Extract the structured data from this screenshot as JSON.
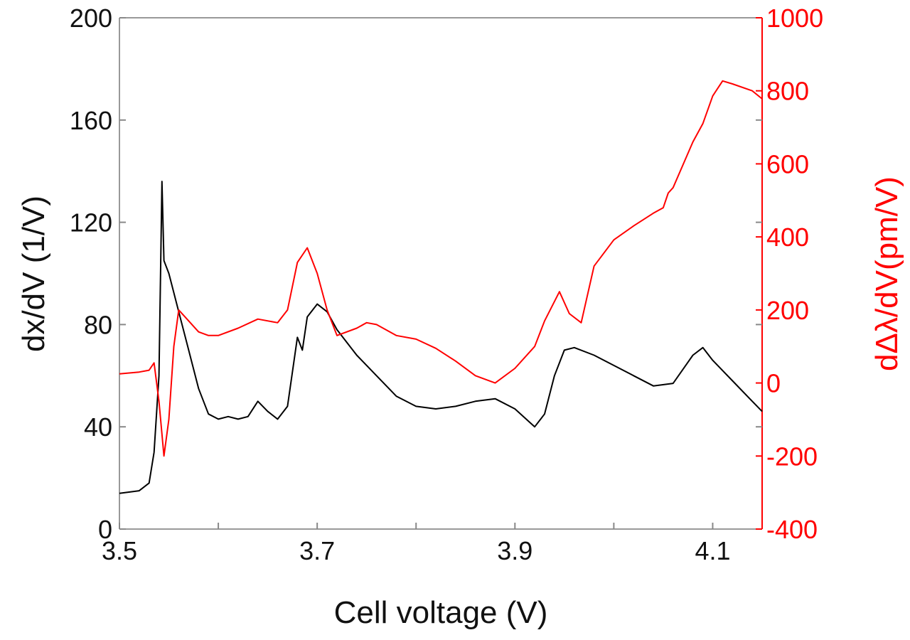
{
  "chart_data": {
    "type": "line",
    "xlabel": "Cell voltage (V)",
    "ylabel": "dx/dV (1/V)",
    "y2label": "dΔλ/dV(pm/V)",
    "xlim": [
      3.5,
      4.15
    ],
    "ylim": [
      0,
      200
    ],
    "y2lim": [
      -400,
      1000
    ],
    "xticks": [
      "3.5",
      "3.7",
      "3.9",
      "4.1"
    ],
    "yticks": [
      "0",
      "40",
      "80",
      "120",
      "160",
      "200"
    ],
    "y2ticks": [
      "-400",
      "-200",
      "0",
      "200",
      "400",
      "600",
      "800",
      "1000"
    ],
    "grid": false,
    "colors": {
      "left_series": "#000000",
      "right_series": "#ff0000",
      "left_axis": "#222222",
      "right_axis": "#ff0000"
    },
    "series": [
      {
        "axis": "left",
        "color": "#000000",
        "x": [
          3.5,
          3.52,
          3.53,
          3.535,
          3.54,
          3.542,
          3.543,
          3.545,
          3.55,
          3.56,
          3.57,
          3.58,
          3.59,
          3.6,
          3.61,
          3.62,
          3.63,
          3.64,
          3.65,
          3.66,
          3.67,
          3.68,
          3.685,
          3.69,
          3.7,
          3.71,
          3.72,
          3.74,
          3.76,
          3.78,
          3.8,
          3.82,
          3.84,
          3.86,
          3.88,
          3.9,
          3.92,
          3.93,
          3.94,
          3.95,
          3.96,
          3.98,
          4.0,
          4.02,
          4.04,
          4.06,
          4.08,
          4.09,
          4.1,
          4.12,
          4.14,
          4.15
        ],
        "y": [
          14,
          15,
          18,
          30,
          60,
          110,
          136,
          105,
          100,
          85,
          70,
          55,
          45,
          43,
          44,
          43,
          44,
          50,
          46,
          43,
          48,
          75,
          70,
          83,
          88,
          85,
          78,
          68,
          60,
          52,
          48,
          47,
          48,
          50,
          51,
          47,
          40,
          45,
          60,
          70,
          71,
          68,
          64,
          60,
          56,
          57,
          68,
          71,
          66,
          58,
          50,
          46
        ]
      },
      {
        "axis": "right",
        "color": "#ff0000",
        "x": [
          3.5,
          3.52,
          3.53,
          3.535,
          3.54,
          3.545,
          3.55,
          3.555,
          3.56,
          3.57,
          3.58,
          3.59,
          3.6,
          3.62,
          3.64,
          3.66,
          3.67,
          3.68,
          3.69,
          3.7,
          3.71,
          3.72,
          3.74,
          3.75,
          3.76,
          3.78,
          3.8,
          3.82,
          3.84,
          3.86,
          3.88,
          3.9,
          3.92,
          3.93,
          3.945,
          3.955,
          3.967,
          3.98,
          4.0,
          4.02,
          4.04,
          4.05,
          4.055,
          4.06,
          4.08,
          4.09,
          4.1,
          4.11,
          4.12,
          4.14,
          4.15
        ],
        "y": [
          25,
          30,
          35,
          55,
          -50,
          -200,
          -100,
          100,
          200,
          170,
          140,
          130,
          130,
          150,
          175,
          165,
          200,
          330,
          370,
          300,
          200,
          130,
          150,
          165,
          160,
          130,
          120,
          95,
          60,
          20,
          0,
          40,
          100,
          170,
          250,
          190,
          165,
          320,
          392,
          430,
          465,
          480,
          520,
          535,
          660,
          710,
          786,
          827,
          819,
          800,
          778
        ]
      }
    ]
  }
}
